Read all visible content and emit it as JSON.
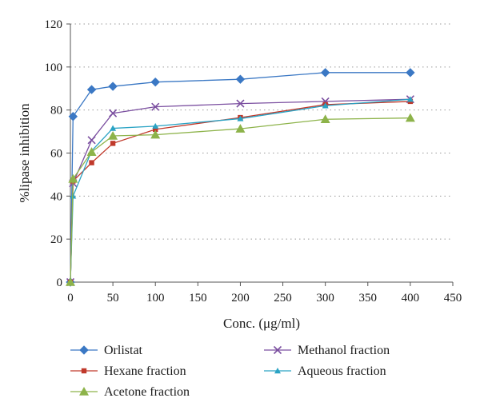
{
  "chart_data": {
    "type": "line",
    "xlabel": "Conc. (μg/ml)",
    "ylabel": "%lipase inhibition",
    "xlim": [
      0,
      450
    ],
    "ylim": [
      0,
      120
    ],
    "xticks": [
      0,
      50,
      100,
      150,
      200,
      250,
      300,
      350,
      400,
      450
    ],
    "yticks": [
      0,
      20,
      40,
      60,
      80,
      100,
      120
    ],
    "grid": "horizontal dotted",
    "legend_position": "bottom",
    "series": [
      {
        "name": "Orlistat",
        "color": "#3b78c4",
        "marker": "diamond",
        "x": [
          0,
          3.125,
          25,
          50,
          100,
          200,
          300,
          400
        ],
        "y": [
          0,
          77,
          89.5,
          91,
          93,
          94.3,
          97.4,
          97.4
        ]
      },
      {
        "name": "Methanol fraction",
        "color": "#7b4fa0",
        "marker": "cross",
        "x": [
          0,
          3.125,
          25,
          50,
          100,
          200,
          300,
          400
        ],
        "y": [
          0,
          46,
          66,
          78.5,
          81.5,
          83,
          84,
          85
        ]
      },
      {
        "name": "Hexane fraction",
        "color": "#c0392b",
        "marker": "square",
        "x": [
          0,
          3.125,
          25,
          50,
          100,
          200,
          300,
          400
        ],
        "y": [
          0,
          47,
          55.5,
          64.5,
          71,
          76.5,
          82.5,
          84
        ]
      },
      {
        "name": "Aqueous fraction",
        "color": "#2aa3c4",
        "marker": "triangle-small",
        "x": [
          0,
          3.125,
          25,
          50,
          100,
          200,
          300,
          400
        ],
        "y": [
          0,
          40,
          61,
          71.5,
          72.5,
          76,
          82,
          85
        ]
      },
      {
        "name": "Acetone fraction",
        "color": "#8db34a",
        "marker": "triangle",
        "x": [
          0,
          3.125,
          25,
          50,
          100,
          200,
          300,
          400
        ],
        "y": [
          0,
          48,
          60.5,
          68,
          68.5,
          71.3,
          75.7,
          76.3
        ]
      }
    ]
  }
}
